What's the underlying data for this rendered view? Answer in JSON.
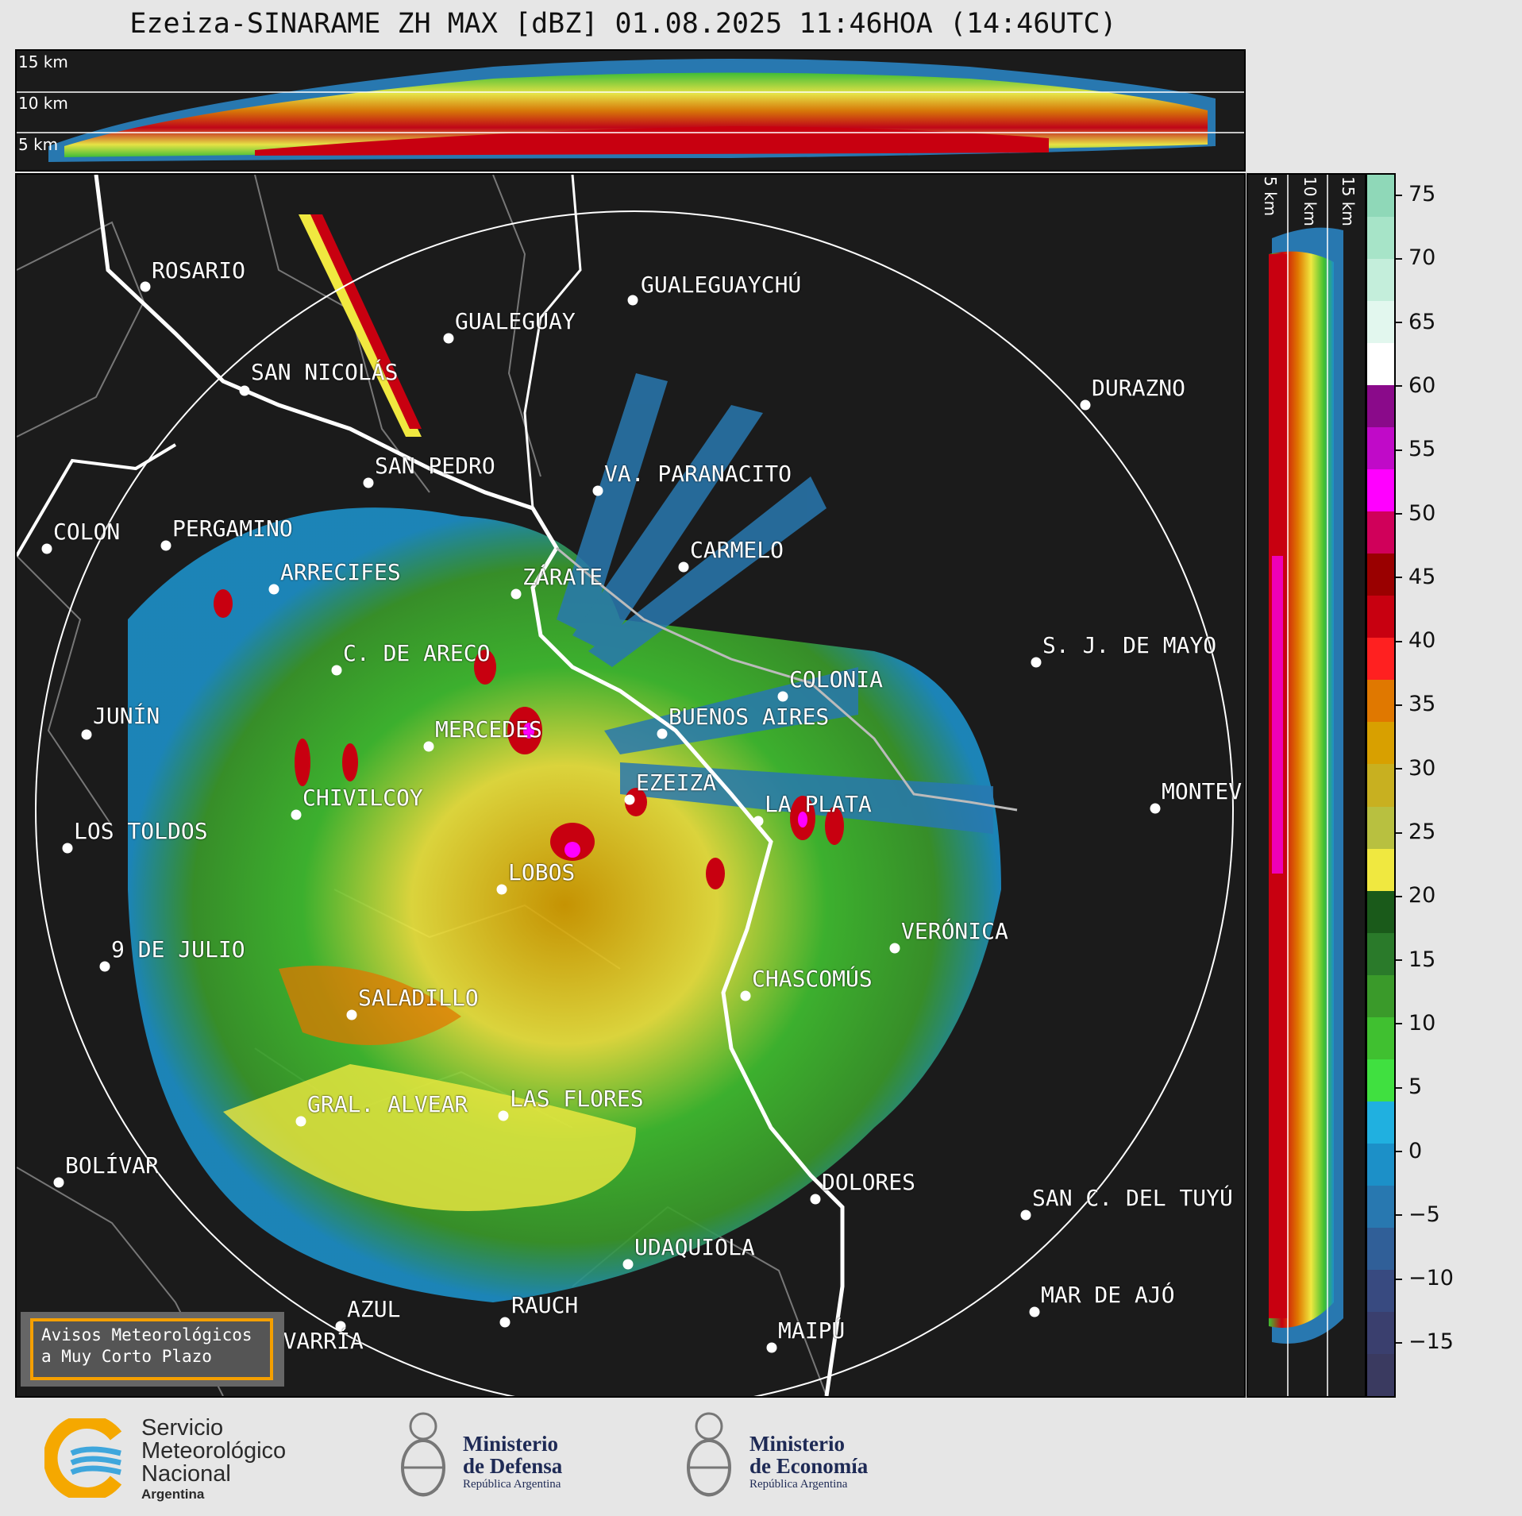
{
  "title": "Ezeiza-SINARAME ZH MAX [dBZ] 01.08.2025 11:46HOA (14:46UTC)",
  "top_section": {
    "height_labels": [
      "15 km",
      "10 km",
      "5 km"
    ]
  },
  "right_section": {
    "height_labels": [
      "5 km",
      "10 km",
      "15 km"
    ]
  },
  "colorbar": {
    "ticks": [
      "75",
      "70",
      "65",
      "60",
      "55",
      "50",
      "45",
      "40",
      "35",
      "30",
      "25",
      "20",
      "15",
      "10",
      "5",
      "0",
      "−5",
      "−10",
      "−15"
    ],
    "colors": [
      "#8fd8b8",
      "#a7e4c8",
      "#c4eedb",
      "#e2f7ee",
      "#ffffff",
      "#8a0a8a",
      "#c00ac8",
      "#ff00ff",
      "#d0005a",
      "#9a0000",
      "#c80010",
      "#ff2020",
      "#e07800",
      "#d8a000",
      "#c8b020",
      "#b8c040",
      "#f0e840",
      "#1a5a1a",
      "#2a7a2a",
      "#3a9a2a",
      "#40c030",
      "#40e040",
      "#20b0e0",
      "#1c90c8",
      "#2878b0",
      "#305f98",
      "#384a80",
      "#3a3f6e",
      "#3a3a60"
    ]
  },
  "cities": [
    {
      "name": "ROSARIO"
    },
    {
      "name": "GUALEGUAYCHÚ"
    },
    {
      "name": "GUALEGUAY"
    },
    {
      "name": "SAN NICOLÁS"
    },
    {
      "name": "DURAZNO"
    },
    {
      "name": "SAN PEDRO"
    },
    {
      "name": "VA. PARANACITO"
    },
    {
      "name": "COLON"
    },
    {
      "name": "PERGAMINO"
    },
    {
      "name": "CARMELO"
    },
    {
      "name": "ARRECIFES"
    },
    {
      "name": "ZÁRATE"
    },
    {
      "name": "S. J. DE MAYO"
    },
    {
      "name": "C. DE ARECO"
    },
    {
      "name": "COLONIA"
    },
    {
      "name": "JUNÍN"
    },
    {
      "name": "MERCEDES"
    },
    {
      "name": "BUENOS AIRES"
    },
    {
      "name": "EZEIZA"
    },
    {
      "name": "MONTEV"
    },
    {
      "name": "CHIVILCOY"
    },
    {
      "name": "LA PLATA"
    },
    {
      "name": "LOS TOLDOS"
    },
    {
      "name": "LOBOS"
    },
    {
      "name": "VERÓNICA"
    },
    {
      "name": "9 DE JULIO"
    },
    {
      "name": "CHASCOMÚS"
    },
    {
      "name": "SALADILLO"
    },
    {
      "name": "GRAL. ALVEAR"
    },
    {
      "name": "LAS FLORES"
    },
    {
      "name": "BOLÍVAR"
    },
    {
      "name": "DOLORES"
    },
    {
      "name": "SAN C. DEL TUYÚ"
    },
    {
      "name": "UDAQUIOLA"
    },
    {
      "name": "MAR DE AJÓ"
    },
    {
      "name": "AZUL"
    },
    {
      "name": "RAUCH"
    },
    {
      "name": "OLAVARRÍA"
    },
    {
      "name": "MAIPÚ"
    }
  ],
  "avisos": {
    "line1": "Avisos Meteorológicos",
    "line2": "a Muy Corto Plazo"
  },
  "footer": {
    "smn": {
      "line1": "Servicio",
      "line2": "Meteorológico",
      "line3": "Nacional",
      "line4": "Argentina"
    },
    "defensa": {
      "line1": "Ministerio",
      "line2": "de Defensa",
      "line3": "República Argentina"
    },
    "economia": {
      "line1": "Ministerio",
      "line2": "de Economía",
      "line3": "República Argentina"
    }
  },
  "icons": [
    "smn-logo-icon",
    "argentina-shield-icon"
  ]
}
